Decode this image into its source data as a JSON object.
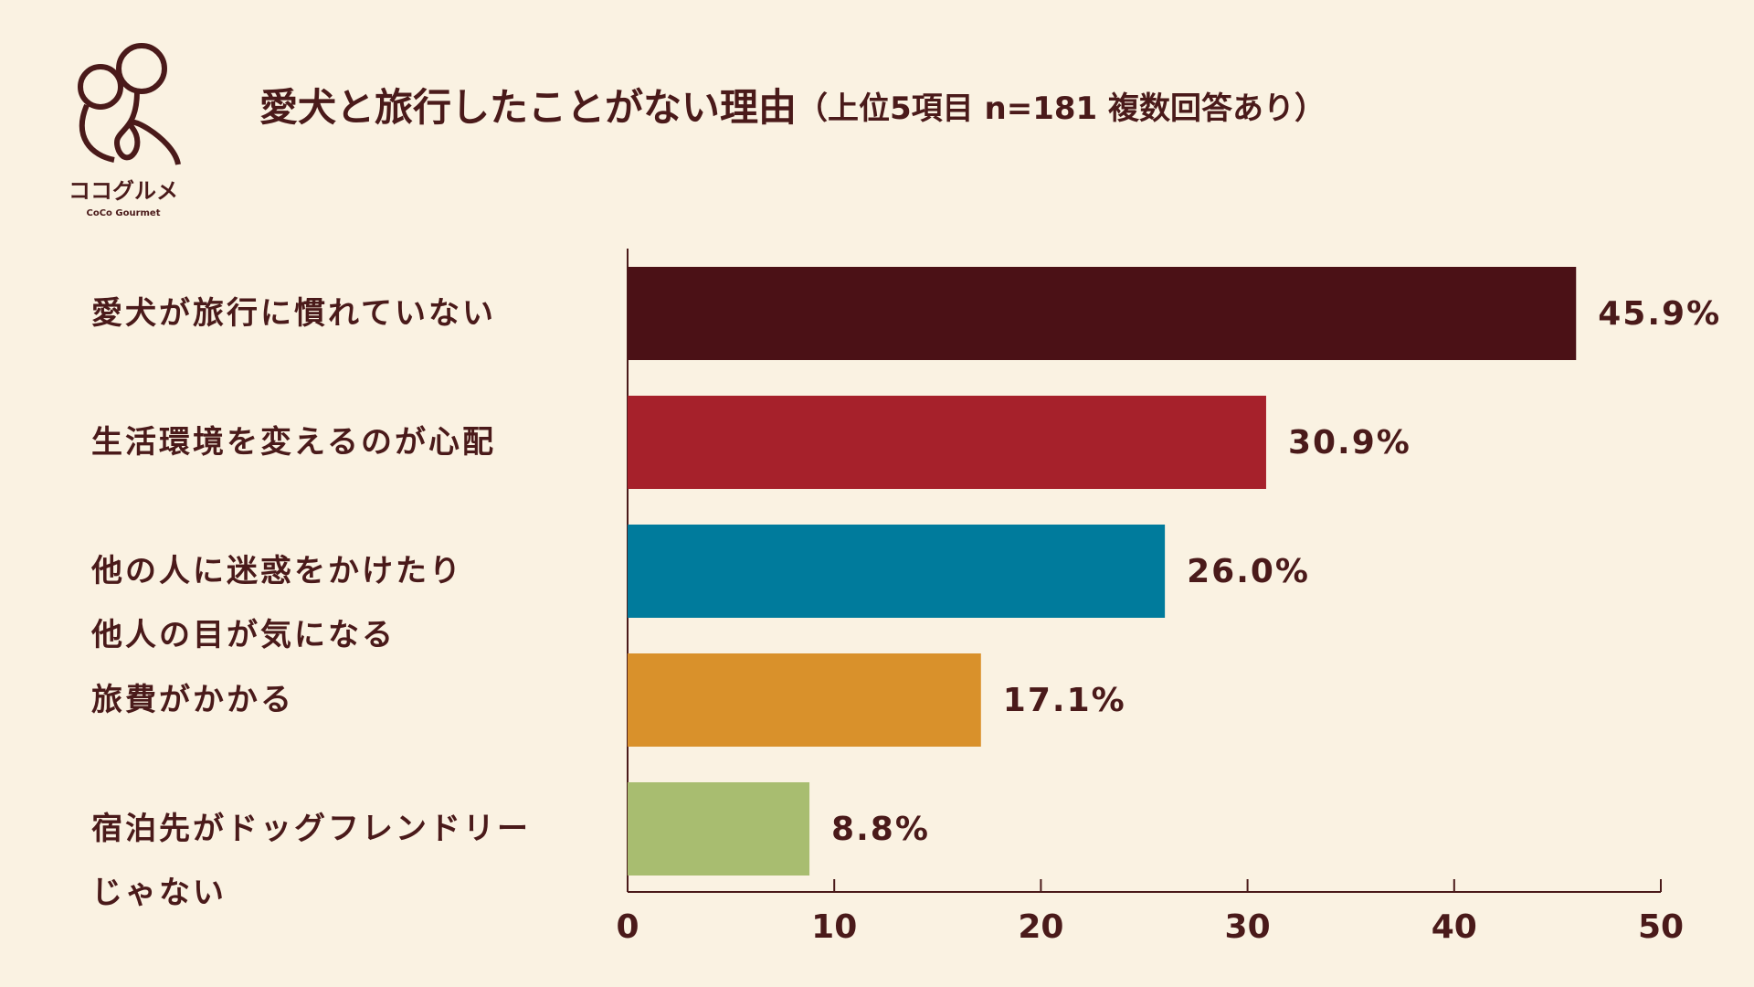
{
  "logo": {
    "name": "ココグルメ",
    "sub": "CoCo Gourmet"
  },
  "chart_data": {
    "type": "bar",
    "orientation": "horizontal",
    "title": "愛犬と旅行したことがない理由",
    "subtitle": "（上位5項目 n=181 複数回答あり）",
    "categories": [
      "愛犬が旅行に慣れていない",
      "生活環境を変えるのが心配",
      "他の人に迷惑をかけたり\n他人の目が気になる",
      "旅費がかかる",
      "宿泊先がドッグフレンドリー\nじゃない"
    ],
    "values": [
      45.9,
      30.9,
      26.0,
      17.1,
      8.8
    ],
    "value_labels": [
      "45.9%",
      "30.9%",
      "26.0%",
      "17.1%",
      "8.8%"
    ],
    "colors": [
      "#4b1116",
      "#a6212b",
      "#007b9c",
      "#d9912b",
      "#a8bd70"
    ],
    "xlim": [
      0,
      50
    ],
    "xticks": [
      0,
      10,
      20,
      30,
      40,
      50
    ],
    "grid": false
  }
}
